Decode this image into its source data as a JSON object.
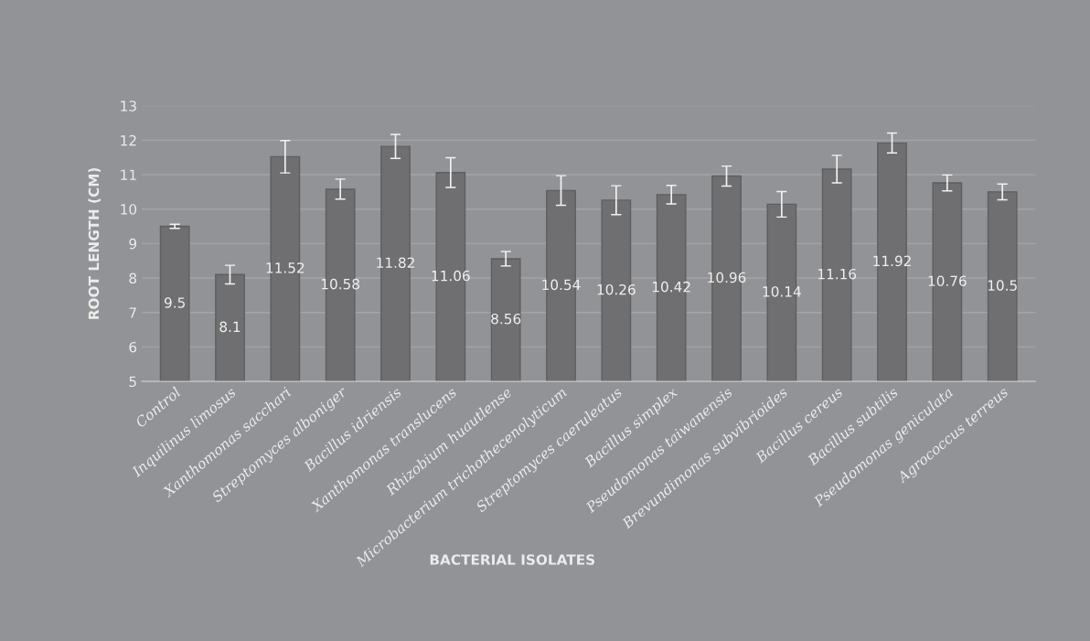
{
  "chart_data": {
    "type": "bar",
    "xlabel": "BACTERIAL ISOLATES",
    "ylabel": "ROOT LENGTH (CM)",
    "categories": [
      "Control",
      "Inquilinus limosus",
      "Xanthomonas sacchari",
      "Streptomyces alboniger",
      "Bacillus idriensis",
      "Xanthomonas translucens",
      "Rhizobium huautlense",
      "Microbacterium trichothecenolyticum",
      "Streptomyces caeruleatus",
      "Bacillus simplex",
      "Pseudomonas taiwanensis",
      "Brevundimonas subvibrioides",
      "Bacillus cereus",
      "Bacillus subtilis",
      "Pseudomonas geniculata",
      "Agrococcus terreus"
    ],
    "values": [
      9.5,
      8.1,
      11.52,
      10.58,
      11.82,
      11.06,
      8.56,
      10.54,
      10.26,
      10.42,
      10.96,
      10.14,
      11.16,
      11.92,
      10.76,
      10.5
    ],
    "errors": [
      0.06,
      0.27,
      0.47,
      0.29,
      0.35,
      0.43,
      0.21,
      0.43,
      0.42,
      0.27,
      0.29,
      0.37,
      0.4,
      0.29,
      0.23,
      0.23
    ],
    "color": "#6f6f71",
    "data_labels": true,
    "ylim": [
      5,
      13
    ],
    "yticks": [
      5,
      6,
      7,
      8,
      9,
      10,
      11,
      12,
      13
    ],
    "grid": "y"
  }
}
